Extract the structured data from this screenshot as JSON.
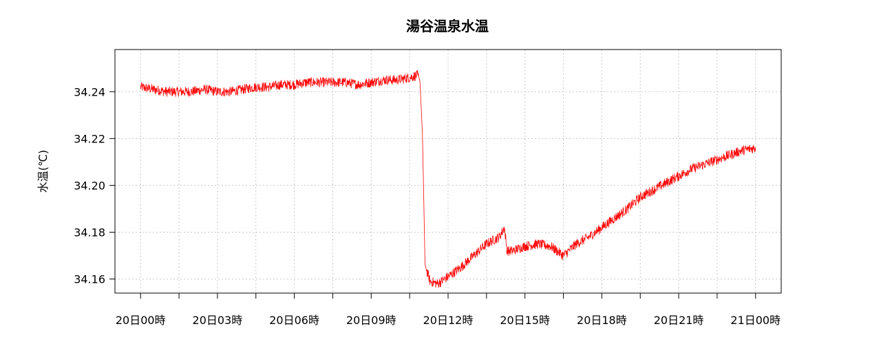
{
  "chart_data": {
    "type": "line",
    "title": "湯谷温泉水温",
    "ylabel": "水温(℃)",
    "xlabel": "",
    "grid": true,
    "legend": "none",
    "x_tick_labels": [
      "20日00時",
      "20日03時",
      "20日06時",
      "20日09時",
      "20日12時",
      "20日15時",
      "20日18時",
      "20日21時",
      "21日00時"
    ],
    "x_tick_hours": [
      0,
      3,
      6,
      9,
      12,
      15,
      18,
      21,
      24
    ],
    "xlim_hours": [
      -1,
      25
    ],
    "y_ticks": [
      "34.16",
      "34.18",
      "34.20",
      "34.22",
      "34.24"
    ],
    "ylim": [
      34.154,
      34.258
    ],
    "series": [
      {
        "name": "",
        "color": "#ff0000",
        "x_hours": [
          0.0,
          0.5,
          1.0,
          1.5,
          2.0,
          2.5,
          3.0,
          3.5,
          4.0,
          4.5,
          5.0,
          5.5,
          6.0,
          6.5,
          7.0,
          7.5,
          8.0,
          8.5,
          9.0,
          9.5,
          10.0,
          10.5,
          10.8,
          10.9,
          11.0,
          11.05,
          11.1,
          11.3,
          11.6,
          12.0,
          12.5,
          13.0,
          13.5,
          14.0,
          14.2,
          14.3,
          14.5,
          15.0,
          15.5,
          16.0,
          16.5,
          17.0,
          17.5,
          18.0,
          18.5,
          19.0,
          19.5,
          20.0,
          20.5,
          21.0,
          21.5,
          22.0,
          22.5,
          23.0,
          23.5,
          24.0
        ],
        "values": [
          34.242,
          34.241,
          34.24,
          34.24,
          34.24,
          34.241,
          34.24,
          34.24,
          34.241,
          34.242,
          34.242,
          34.243,
          34.243,
          34.244,
          34.244,
          34.244,
          34.244,
          34.243,
          34.244,
          34.245,
          34.245,
          34.246,
          34.247,
          34.245,
          34.222,
          34.195,
          34.166,
          34.159,
          34.158,
          34.161,
          34.165,
          34.17,
          34.175,
          34.178,
          34.182,
          34.172,
          34.172,
          34.174,
          34.175,
          34.174,
          34.17,
          34.175,
          34.178,
          34.182,
          34.186,
          34.19,
          34.195,
          34.198,
          34.201,
          34.204,
          34.207,
          34.209,
          34.211,
          34.213,
          34.215,
          34.216
        ]
      }
    ]
  }
}
